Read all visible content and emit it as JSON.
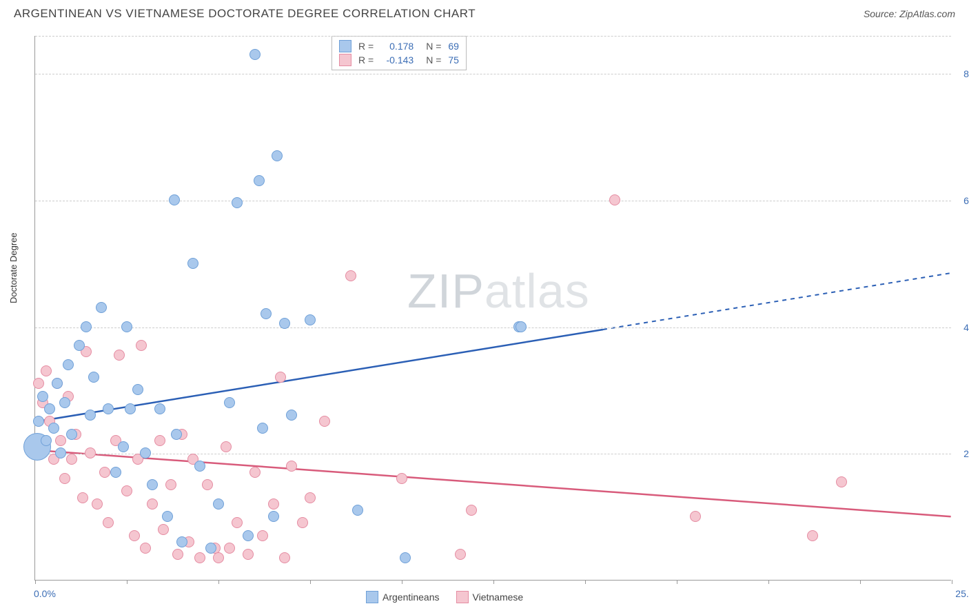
{
  "title": "ARGENTINEAN VS VIETNAMESE DOCTORATE DEGREE CORRELATION CHART",
  "source": "Source: ZipAtlas.com",
  "y_axis_label": "Doctorate Degree",
  "watermark": {
    "part1": "ZIP",
    "part2": "atlas"
  },
  "chart": {
    "type": "scatter",
    "xlim": [
      0,
      25
    ],
    "ylim": [
      0,
      8.6
    ],
    "x_ticks": [
      0,
      2.5,
      5.0,
      7.5,
      10.0,
      12.5,
      15.0,
      17.5,
      20.0,
      22.5,
      25.0
    ],
    "x_tick_labels_shown": {
      "0": "0.0%",
      "25": "25.0%"
    },
    "y_ticks": [
      2.0,
      4.0,
      6.0,
      8.0
    ],
    "y_tick_labels": [
      "2.0%",
      "4.0%",
      "6.0%",
      "8.0%"
    ],
    "grid_color": "#cccccc",
    "axis_color": "#999999",
    "background_color": "#ffffff",
    "tick_label_color": "#3b6db5",
    "tick_label_fontsize": 14,
    "marker_base_radius": 8,
    "marker_stroke_width": 1.5,
    "marker_fill_opacity": 0.25,
    "trend_line_width": 2.5
  },
  "series": {
    "argentineans": {
      "label": "Argentineans",
      "color_fill": "#a9c8ec",
      "color_stroke": "#6fa0d8",
      "trend_color": "#2b5fb5",
      "r_value": "0.178",
      "n_value": "69",
      "trend": {
        "x1": 0,
        "y1": 2.5,
        "x2": 25,
        "y2": 4.85,
        "solid_until_x": 15.5
      },
      "points": [
        {
          "x": 0.05,
          "y": 2.1,
          "r": 20
        },
        {
          "x": 0.1,
          "y": 2.5,
          "r": 8
        },
        {
          "x": 0.2,
          "y": 2.9,
          "r": 8
        },
        {
          "x": 0.3,
          "y": 2.2,
          "r": 8
        },
        {
          "x": 0.4,
          "y": 2.7,
          "r": 8
        },
        {
          "x": 0.5,
          "y": 2.4,
          "r": 8
        },
        {
          "x": 0.6,
          "y": 3.1,
          "r": 8
        },
        {
          "x": 0.7,
          "y": 2.0,
          "r": 8
        },
        {
          "x": 0.8,
          "y": 2.8,
          "r": 8
        },
        {
          "x": 0.9,
          "y": 3.4,
          "r": 8
        },
        {
          "x": 1.0,
          "y": 2.3,
          "r": 8
        },
        {
          "x": 1.2,
          "y": 3.7,
          "r": 8
        },
        {
          "x": 1.4,
          "y": 4.0,
          "r": 8
        },
        {
          "x": 1.5,
          "y": 2.6,
          "r": 8
        },
        {
          "x": 1.6,
          "y": 3.2,
          "r": 8
        },
        {
          "x": 1.8,
          "y": 4.3,
          "r": 8
        },
        {
          "x": 2.0,
          "y": 2.7,
          "r": 8
        },
        {
          "x": 2.2,
          "y": 1.7,
          "r": 8
        },
        {
          "x": 2.4,
          "y": 2.1,
          "r": 8
        },
        {
          "x": 2.5,
          "y": 4.0,
          "r": 8
        },
        {
          "x": 2.6,
          "y": 2.7,
          "r": 8
        },
        {
          "x": 2.8,
          "y": 3.0,
          "r": 8
        },
        {
          "x": 3.0,
          "y": 2.0,
          "r": 8
        },
        {
          "x": 3.2,
          "y": 1.5,
          "r": 8
        },
        {
          "x": 3.4,
          "y": 2.7,
          "r": 8
        },
        {
          "x": 3.6,
          "y": 1.0,
          "r": 8
        },
        {
          "x": 3.8,
          "y": 6.0,
          "r": 8
        },
        {
          "x": 3.85,
          "y": 2.3,
          "r": 8
        },
        {
          "x": 4.0,
          "y": 0.6,
          "r": 8
        },
        {
          "x": 4.3,
          "y": 5.0,
          "r": 8
        },
        {
          "x": 4.5,
          "y": 1.8,
          "r": 8
        },
        {
          "x": 4.8,
          "y": 0.5,
          "r": 8
        },
        {
          "x": 5.0,
          "y": 1.2,
          "r": 8
        },
        {
          "x": 5.3,
          "y": 2.8,
          "r": 8
        },
        {
          "x": 5.5,
          "y": 5.95,
          "r": 8
        },
        {
          "x": 5.8,
          "y": 0.7,
          "r": 8
        },
        {
          "x": 6.0,
          "y": 8.3,
          "r": 8
        },
        {
          "x": 6.1,
          "y": 6.3,
          "r": 8
        },
        {
          "x": 6.2,
          "y": 2.4,
          "r": 8
        },
        {
          "x": 6.3,
          "y": 4.2,
          "r": 8
        },
        {
          "x": 6.5,
          "y": 1.0,
          "r": 8
        },
        {
          "x": 6.6,
          "y": 6.7,
          "r": 8
        },
        {
          "x": 6.8,
          "y": 4.05,
          "r": 8
        },
        {
          "x": 7.0,
          "y": 2.6,
          "r": 8
        },
        {
          "x": 7.5,
          "y": 4.1,
          "r": 8
        },
        {
          "x": 8.8,
          "y": 1.1,
          "r": 8
        },
        {
          "x": 10.1,
          "y": 0.35,
          "r": 8
        },
        {
          "x": 13.2,
          "y": 4.0,
          "r": 8
        },
        {
          "x": 13.25,
          "y": 4.0,
          "r": 8
        }
      ]
    },
    "vietnamese": {
      "label": "Vietnamese",
      "color_fill": "#f5c6d0",
      "color_stroke": "#e58ca2",
      "trend_color": "#d85b7b",
      "r_value": "-0.143",
      "n_value": "75",
      "trend": {
        "x1": 0,
        "y1": 2.05,
        "x2": 25,
        "y2": 1.0,
        "solid_until_x": 25
      },
      "points": [
        {
          "x": 0.1,
          "y": 3.1,
          "r": 8
        },
        {
          "x": 0.2,
          "y": 2.8,
          "r": 8
        },
        {
          "x": 0.3,
          "y": 3.3,
          "r": 8
        },
        {
          "x": 0.4,
          "y": 2.5,
          "r": 8
        },
        {
          "x": 0.5,
          "y": 1.9,
          "r": 8
        },
        {
          "x": 0.6,
          "y": 3.1,
          "r": 8
        },
        {
          "x": 0.7,
          "y": 2.2,
          "r": 8
        },
        {
          "x": 0.8,
          "y": 1.6,
          "r": 8
        },
        {
          "x": 0.9,
          "y": 2.9,
          "r": 8
        },
        {
          "x": 1.0,
          "y": 1.9,
          "r": 8
        },
        {
          "x": 1.1,
          "y": 2.3,
          "r": 8
        },
        {
          "x": 1.3,
          "y": 1.3,
          "r": 8
        },
        {
          "x": 1.4,
          "y": 3.6,
          "r": 8
        },
        {
          "x": 1.5,
          "y": 2.0,
          "r": 8
        },
        {
          "x": 1.7,
          "y": 1.2,
          "r": 8
        },
        {
          "x": 1.9,
          "y": 1.7,
          "r": 8
        },
        {
          "x": 2.0,
          "y": 0.9,
          "r": 8
        },
        {
          "x": 2.2,
          "y": 2.2,
          "r": 8
        },
        {
          "x": 2.3,
          "y": 3.55,
          "r": 8
        },
        {
          "x": 2.5,
          "y": 1.4,
          "r": 8
        },
        {
          "x": 2.7,
          "y": 0.7,
          "r": 8
        },
        {
          "x": 2.8,
          "y": 1.9,
          "r": 8
        },
        {
          "x": 2.9,
          "y": 3.7,
          "r": 8
        },
        {
          "x": 3.0,
          "y": 0.5,
          "r": 8
        },
        {
          "x": 3.2,
          "y": 1.2,
          "r": 8
        },
        {
          "x": 3.4,
          "y": 2.2,
          "r": 8
        },
        {
          "x": 3.5,
          "y": 0.8,
          "r": 8
        },
        {
          "x": 3.7,
          "y": 1.5,
          "r": 8
        },
        {
          "x": 3.9,
          "y": 0.4,
          "r": 8
        },
        {
          "x": 4.0,
          "y": 2.3,
          "r": 8
        },
        {
          "x": 4.2,
          "y": 0.6,
          "r": 8
        },
        {
          "x": 4.3,
          "y": 1.9,
          "r": 8
        },
        {
          "x": 4.5,
          "y": 0.35,
          "r": 8
        },
        {
          "x": 4.7,
          "y": 1.5,
          "r": 8
        },
        {
          "x": 4.9,
          "y": 0.5,
          "r": 8
        },
        {
          "x": 5.0,
          "y": 0.35,
          "r": 8
        },
        {
          "x": 5.2,
          "y": 2.1,
          "r": 8
        },
        {
          "x": 5.3,
          "y": 0.5,
          "r": 8
        },
        {
          "x": 5.5,
          "y": 0.9,
          "r": 8
        },
        {
          "x": 5.8,
          "y": 0.4,
          "r": 8
        },
        {
          "x": 6.0,
          "y": 1.7,
          "r": 8
        },
        {
          "x": 6.2,
          "y": 0.7,
          "r": 8
        },
        {
          "x": 6.5,
          "y": 1.2,
          "r": 8
        },
        {
          "x": 6.7,
          "y": 3.2,
          "r": 8
        },
        {
          "x": 6.8,
          "y": 0.35,
          "r": 8
        },
        {
          "x": 7.0,
          "y": 1.8,
          "r": 8
        },
        {
          "x": 7.3,
          "y": 0.9,
          "r": 8
        },
        {
          "x": 7.5,
          "y": 1.3,
          "r": 8
        },
        {
          "x": 7.9,
          "y": 2.5,
          "r": 8
        },
        {
          "x": 8.6,
          "y": 4.8,
          "r": 8
        },
        {
          "x": 10.0,
          "y": 1.6,
          "r": 8
        },
        {
          "x": 11.6,
          "y": 0.4,
          "r": 8
        },
        {
          "x": 11.9,
          "y": 1.1,
          "r": 8
        },
        {
          "x": 15.8,
          "y": 6.0,
          "r": 8
        },
        {
          "x": 18.0,
          "y": 1.0,
          "r": 8
        },
        {
          "x": 21.2,
          "y": 0.7,
          "r": 8
        },
        {
          "x": 22.0,
          "y": 1.55,
          "r": 8
        }
      ]
    }
  },
  "legend_text": {
    "r_label": "R =",
    "n_label": "N ="
  }
}
